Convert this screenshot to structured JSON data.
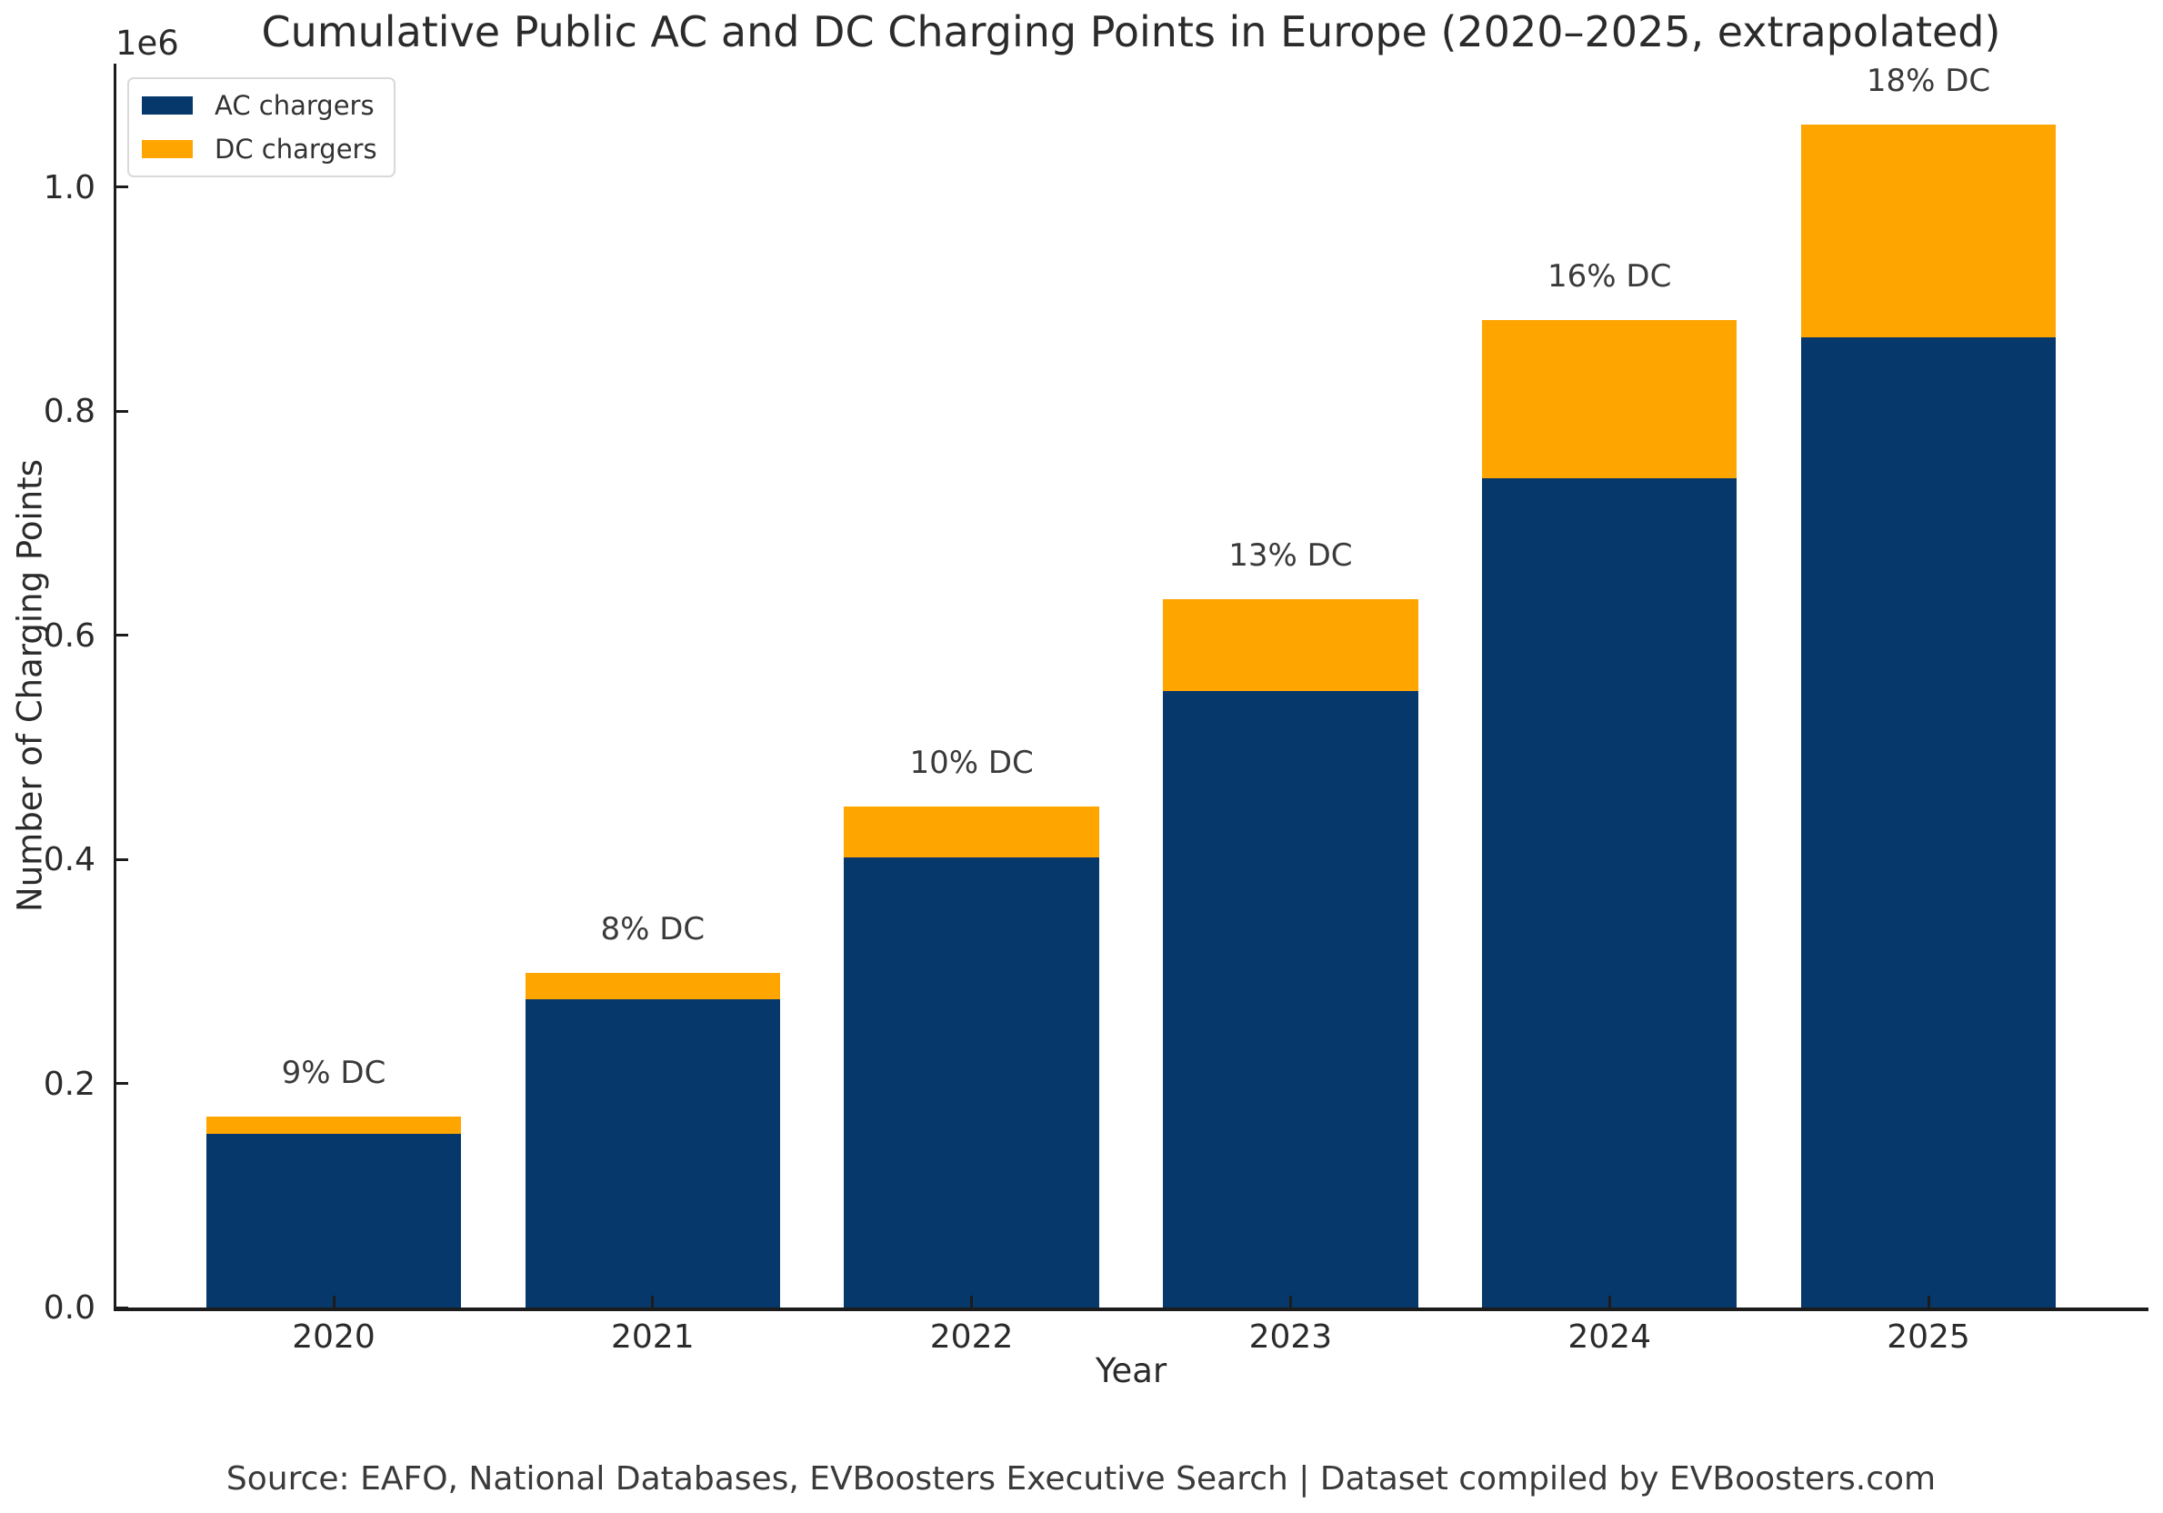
{
  "title": "Cumulative Public AC and DC Charging Points in Europe (2020–2025, extrapolated)",
  "source_text": "Source: EAFO, National Databases, EVBoosters Executive Search | Dataset compiled by EVBoosters.com",
  "chart_data": {
    "type": "bar",
    "stacked": true,
    "title": "Cumulative Public AC and DC Charging Points in Europe (2020–2025, extrapolated)",
    "xlabel": "Year",
    "ylabel": "Number of Charging Points",
    "y_offset_text": "1e6",
    "categories": [
      "2020",
      "2021",
      "2022",
      "2023",
      "2024",
      "2025"
    ],
    "series": [
      {
        "name": "AC chargers",
        "color": "#07386b",
        "values": [
          155000,
          275000,
          402000,
          550000,
          740000,
          866000
        ]
      },
      {
        "name": "DC chargers",
        "color": "#ffa500",
        "values": [
          15500,
          24000,
          45000,
          82000,
          141000,
          190000
        ]
      }
    ],
    "bar_labels": [
      "9% DC",
      "8% DC",
      "10% DC",
      "13% DC",
      "16% DC",
      "18% DC"
    ],
    "yticks": [
      {
        "label": "0.0",
        "value": 0
      },
      {
        "label": "0.2",
        "value": 200000
      },
      {
        "label": "0.4",
        "value": 400000
      },
      {
        "label": "0.6",
        "value": 600000
      },
      {
        "label": "0.8",
        "value": 800000
      },
      {
        "label": "1.0",
        "value": 1000000
      }
    ],
    "ylim": [
      0,
      1110000
    ],
    "grid": false,
    "legend_position": "upper left",
    "colors": {
      "text": "#2b2b2b",
      "annotation": "#3a3a3a",
      "axis": "#1c1c1c",
      "background": "#ffffff"
    }
  }
}
